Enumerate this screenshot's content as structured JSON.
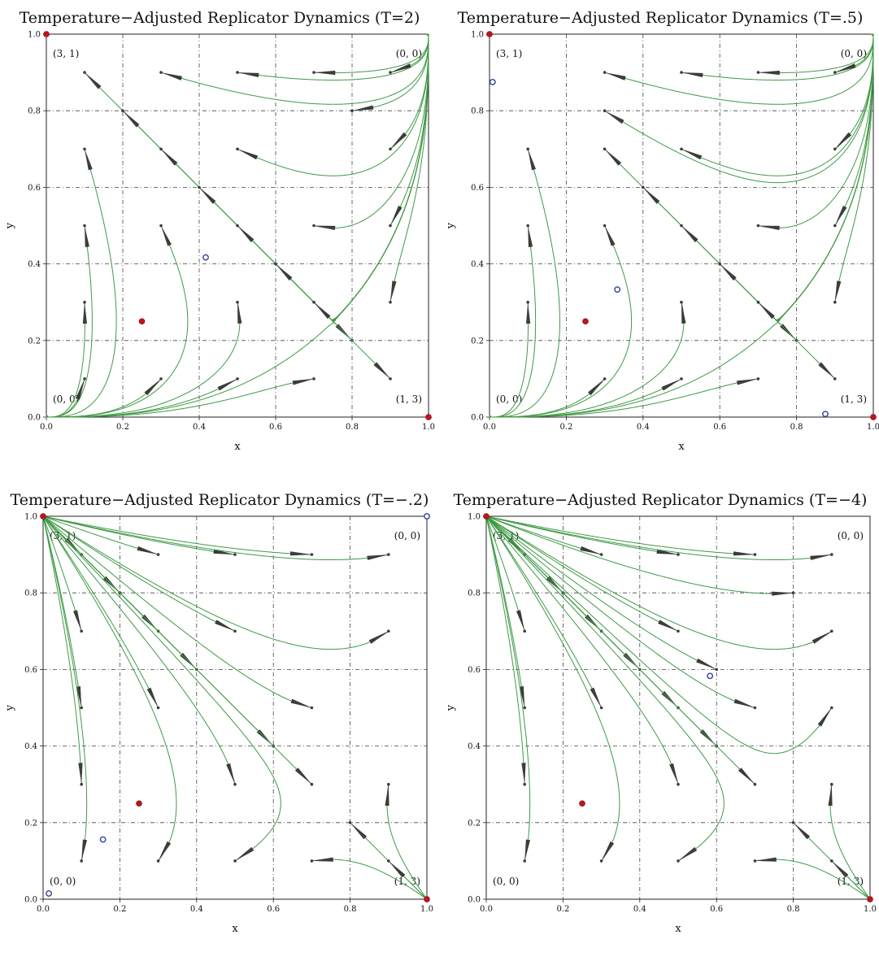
{
  "colors": {
    "trajectory": "#3f9a45",
    "arrow": "#3c3c3c",
    "stable": "#c0141c",
    "unstable": "#2f3f9a",
    "grid": "#444444"
  },
  "panels": [
    {
      "title": "Temperature−Adjusted Replicator Dynamics (T=2)",
      "T": 2,
      "xlabel": "x",
      "ylabel": "y",
      "x_ticks": [
        "0.0",
        "0.2",
        "0.4",
        "0.6",
        "0.8",
        "1.0"
      ],
      "y_ticks": [
        "0.0",
        "0.2",
        "0.4",
        "0.6",
        "0.8",
        "1.0"
      ],
      "payoff_labels": {
        "top_left": "(3, 1)",
        "top_right": "(0, 0)",
        "bottom_left": "(0, 0)",
        "bottom_right": "(1, 3)"
      }
    },
    {
      "title": "Temperature−Adjusted Replicator Dynamics (T=.5)",
      "T": 0.5,
      "xlabel": "x",
      "ylabel": "y",
      "x_ticks": [
        "0.0",
        "0.2",
        "0.4",
        "0.6",
        "0.8",
        "1.0"
      ],
      "y_ticks": [
        "0.0",
        "0.2",
        "0.4",
        "0.6",
        "0.8",
        "1.0"
      ],
      "payoff_labels": {
        "top_left": "(3, 1)",
        "top_right": "(0, 0)",
        "bottom_left": "(0, 0)",
        "bottom_right": "(1, 3)"
      }
    },
    {
      "title": "Temperature−Adjusted Replicator Dynamics (T=−.2)",
      "T": -0.2,
      "xlabel": "x",
      "ylabel": "y",
      "x_ticks": [
        "0.0",
        "0.2",
        "0.4",
        "0.6",
        "0.8",
        "1.0"
      ],
      "y_ticks": [
        "0.0",
        "0.2",
        "0.4",
        "0.6",
        "0.8",
        "1.0"
      ],
      "payoff_labels": {
        "top_left": "(3, 1)",
        "top_right": "(0, 0)",
        "bottom_left": "(0, 0)",
        "bottom_right": "(1, 3)"
      }
    },
    {
      "title": "Temperature−Adjusted Replicator Dynamics (T=−4)",
      "T": -4,
      "xlabel": "x",
      "ylabel": "y",
      "x_ticks": [
        "0.0",
        "0.2",
        "0.4",
        "0.6",
        "0.8",
        "1.0"
      ],
      "y_ticks": [
        "0.0",
        "0.2",
        "0.4",
        "0.6",
        "0.8",
        "1.0"
      ],
      "payoff_labels": {
        "top_left": "(3, 1)",
        "top_right": "(0, 0)",
        "bottom_left": "(0, 0)",
        "bottom_right": "(1, 3)"
      }
    }
  ],
  "chart_data": [
    {
      "type": "scatter",
      "title": "Temperature−Adjusted Replicator Dynamics (T=2)",
      "xlabel": "x",
      "ylabel": "y",
      "xlim": [
        0,
        1
      ],
      "ylim": [
        0,
        1
      ],
      "grid": true,
      "stable_points": [
        [
          0,
          1
        ],
        [
          1,
          0
        ],
        [
          0.25,
          0.25
        ]
      ],
      "unstable_points": [
        [
          0.417,
          0.417
        ]
      ],
      "starts": [
        [
          0.1,
          0.9
        ],
        [
          0.3,
          0.9
        ],
        [
          0.5,
          0.9
        ],
        [
          0.7,
          0.9
        ],
        [
          0.9,
          0.9
        ],
        [
          0.2,
          0.8
        ],
        [
          0.8,
          0.8
        ],
        [
          0.1,
          0.7
        ],
        [
          0.3,
          0.7
        ],
        [
          0.5,
          0.7
        ],
        [
          0.9,
          0.7
        ],
        [
          0.4,
          0.6
        ],
        [
          0.1,
          0.5
        ],
        [
          0.3,
          0.5
        ],
        [
          0.5,
          0.5
        ],
        [
          0.7,
          0.5
        ],
        [
          0.9,
          0.5
        ],
        [
          0.6,
          0.4
        ],
        [
          0.1,
          0.3
        ],
        [
          0.5,
          0.3
        ],
        [
          0.7,
          0.3
        ],
        [
          0.9,
          0.3
        ],
        [
          0.8,
          0.2
        ],
        [
          0.1,
          0.1
        ],
        [
          0.3,
          0.1
        ],
        [
          0.5,
          0.1
        ],
        [
          0.7,
          0.1
        ],
        [
          0.9,
          0.1
        ]
      ]
    },
    {
      "type": "scatter",
      "title": "Temperature−Adjusted Replicator Dynamics (T=.5)",
      "xlabel": "x",
      "ylabel": "y",
      "xlim": [
        0,
        1
      ],
      "ylim": [
        0,
        1
      ],
      "grid": true,
      "stable_points": [
        [
          0,
          1
        ],
        [
          1,
          0
        ],
        [
          0.25,
          0.25
        ]
      ],
      "unstable_points": [
        [
          0.008,
          0.875
        ],
        [
          0.333,
          0.333
        ],
        [
          0.875,
          0.008
        ]
      ],
      "starts": [
        [
          0.3,
          0.9
        ],
        [
          0.5,
          0.9
        ],
        [
          0.7,
          0.9
        ],
        [
          0.9,
          0.9
        ],
        [
          0.3,
          0.8
        ],
        [
          0.1,
          0.7
        ],
        [
          0.3,
          0.7
        ],
        [
          0.5,
          0.7
        ],
        [
          0.9,
          0.7
        ],
        [
          0.4,
          0.6
        ],
        [
          0.1,
          0.5
        ],
        [
          0.3,
          0.5
        ],
        [
          0.5,
          0.5
        ],
        [
          0.7,
          0.5
        ],
        [
          0.9,
          0.5
        ],
        [
          0.6,
          0.4
        ],
        [
          0.1,
          0.3
        ],
        [
          0.5,
          0.3
        ],
        [
          0.7,
          0.3
        ],
        [
          0.9,
          0.3
        ],
        [
          0.8,
          0.2
        ],
        [
          0.3,
          0.1
        ],
        [
          0.5,
          0.1
        ],
        [
          0.7,
          0.1
        ],
        [
          0.9,
          0.1
        ]
      ]
    },
    {
      "type": "scatter",
      "title": "Temperature−Adjusted Replicator Dynamics (T=−.2)",
      "xlabel": "x",
      "ylabel": "y",
      "xlim": [
        0,
        1
      ],
      "ylim": [
        0,
        1
      ],
      "grid": true,
      "stable_points": [
        [
          0,
          1
        ],
        [
          1,
          0
        ],
        [
          0.25,
          0.25
        ]
      ],
      "unstable_points": [
        [
          1,
          1
        ],
        [
          0.156,
          0.156
        ],
        [
          0.015,
          0.015
        ]
      ],
      "starts": [
        [
          0.1,
          0.9
        ],
        [
          0.3,
          0.9
        ],
        [
          0.5,
          0.9
        ],
        [
          0.7,
          0.9
        ],
        [
          0.9,
          0.9
        ],
        [
          0.2,
          0.8
        ],
        [
          0.1,
          0.7
        ],
        [
          0.3,
          0.7
        ],
        [
          0.5,
          0.7
        ],
        [
          0.9,
          0.7
        ],
        [
          0.4,
          0.6
        ],
        [
          0.1,
          0.5
        ],
        [
          0.3,
          0.5
        ],
        [
          0.7,
          0.5
        ],
        [
          0.6,
          0.4
        ],
        [
          0.1,
          0.3
        ],
        [
          0.5,
          0.3
        ],
        [
          0.7,
          0.3
        ],
        [
          0.9,
          0.3
        ],
        [
          0.8,
          0.2
        ],
        [
          0.1,
          0.1
        ],
        [
          0.3,
          0.1
        ],
        [
          0.5,
          0.1
        ],
        [
          0.7,
          0.1
        ],
        [
          0.9,
          0.1
        ]
      ]
    },
    {
      "type": "scatter",
      "title": "Temperature−Adjusted Replicator Dynamics (T=−4)",
      "xlabel": "x",
      "ylabel": "y",
      "xlim": [
        0,
        1
      ],
      "ylim": [
        0,
        1
      ],
      "grid": true,
      "stable_points": [
        [
          0,
          1
        ],
        [
          1,
          0
        ],
        [
          0.25,
          0.25
        ]
      ],
      "unstable_points": [
        [
          0.583,
          0.583
        ]
      ],
      "starts": [
        [
          0.1,
          0.9
        ],
        [
          0.3,
          0.9
        ],
        [
          0.5,
          0.9
        ],
        [
          0.7,
          0.9
        ],
        [
          0.9,
          0.9
        ],
        [
          0.2,
          0.8
        ],
        [
          0.8,
          0.8
        ],
        [
          0.1,
          0.7
        ],
        [
          0.3,
          0.7
        ],
        [
          0.5,
          0.7
        ],
        [
          0.9,
          0.7
        ],
        [
          0.4,
          0.6
        ],
        [
          0.6,
          0.6
        ],
        [
          0.1,
          0.5
        ],
        [
          0.3,
          0.5
        ],
        [
          0.5,
          0.5
        ],
        [
          0.7,
          0.5
        ],
        [
          0.9,
          0.5
        ],
        [
          0.6,
          0.4
        ],
        [
          0.1,
          0.3
        ],
        [
          0.5,
          0.3
        ],
        [
          0.7,
          0.3
        ],
        [
          0.9,
          0.3
        ],
        [
          0.8,
          0.2
        ],
        [
          0.1,
          0.1
        ],
        [
          0.3,
          0.1
        ],
        [
          0.5,
          0.1
        ],
        [
          0.7,
          0.1
        ],
        [
          0.9,
          0.1
        ]
      ]
    }
  ]
}
